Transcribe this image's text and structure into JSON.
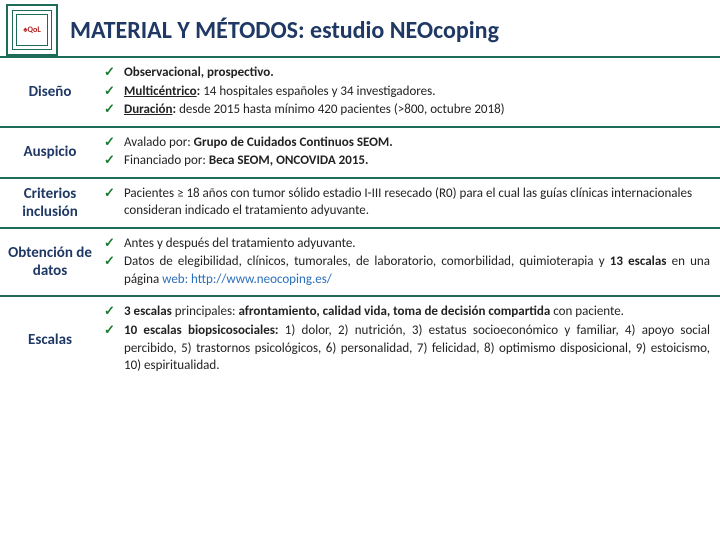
{
  "header": {
    "logo_text": "♠QoL",
    "title": "MATERIAL Y MÉTODOS: estudio NEOcoping"
  },
  "rows": [
    {
      "label": "Diseño",
      "items": [
        "<b>Observacional, prospectivo.</b>",
        "<b><u>Multicéntrico</u>:</b> 14 hospitales españoles y 34 investigadores.",
        "<b><u>Duración</u>:</b> desde 2015 hasta mínimo 420 pacientes (>800, octubre 2018)"
      ],
      "justify": false
    },
    {
      "label": "Auspicio",
      "items": [
        "Avalado por: <b>Grupo de Cuidados Continuos SEOM.</b>",
        "Financiado por: <b>Beca SEOM, ONCOVIDA 2015.</b>"
      ],
      "justify": false
    },
    {
      "label": "Criterios inclusión",
      "items": [
        "Pacientes ≥ 18 años con tumor sólido estadio I-III resecado (R0) para el cual las guías clínicas internacionales consideran indicado el tratamiento adyuvante."
      ],
      "justify": false
    },
    {
      "label": "Obtención de datos",
      "items": [
        "Antes y después del tratamiento adyuvante.",
        "Datos de elegibilidad, clínicos, tumorales, de laboratorio, comorbilidad, quimioterapia y <b>13 escalas</b> en una página <span class='link'>web: http://www.neocoping.es/</span>"
      ],
      "justify": true
    },
    {
      "label": "Escalas",
      "items": [
        "<b>3 escalas</b> principales: <b>afrontamiento, calidad vida, toma de decisión compartida</b> con paciente.",
        "<b>10 escalas biopsicosociales:</b> 1) dolor, 2) nutrición, 3) estatus socioeconómico y familiar, 4) apoyo social percibido, 5) trastornos psicológicos, 6) personalidad, 7) felicidad, 8) optimismo disposicional, 9) estoicismo, 10) espiritualidad."
      ],
      "justify": true
    }
  ]
}
